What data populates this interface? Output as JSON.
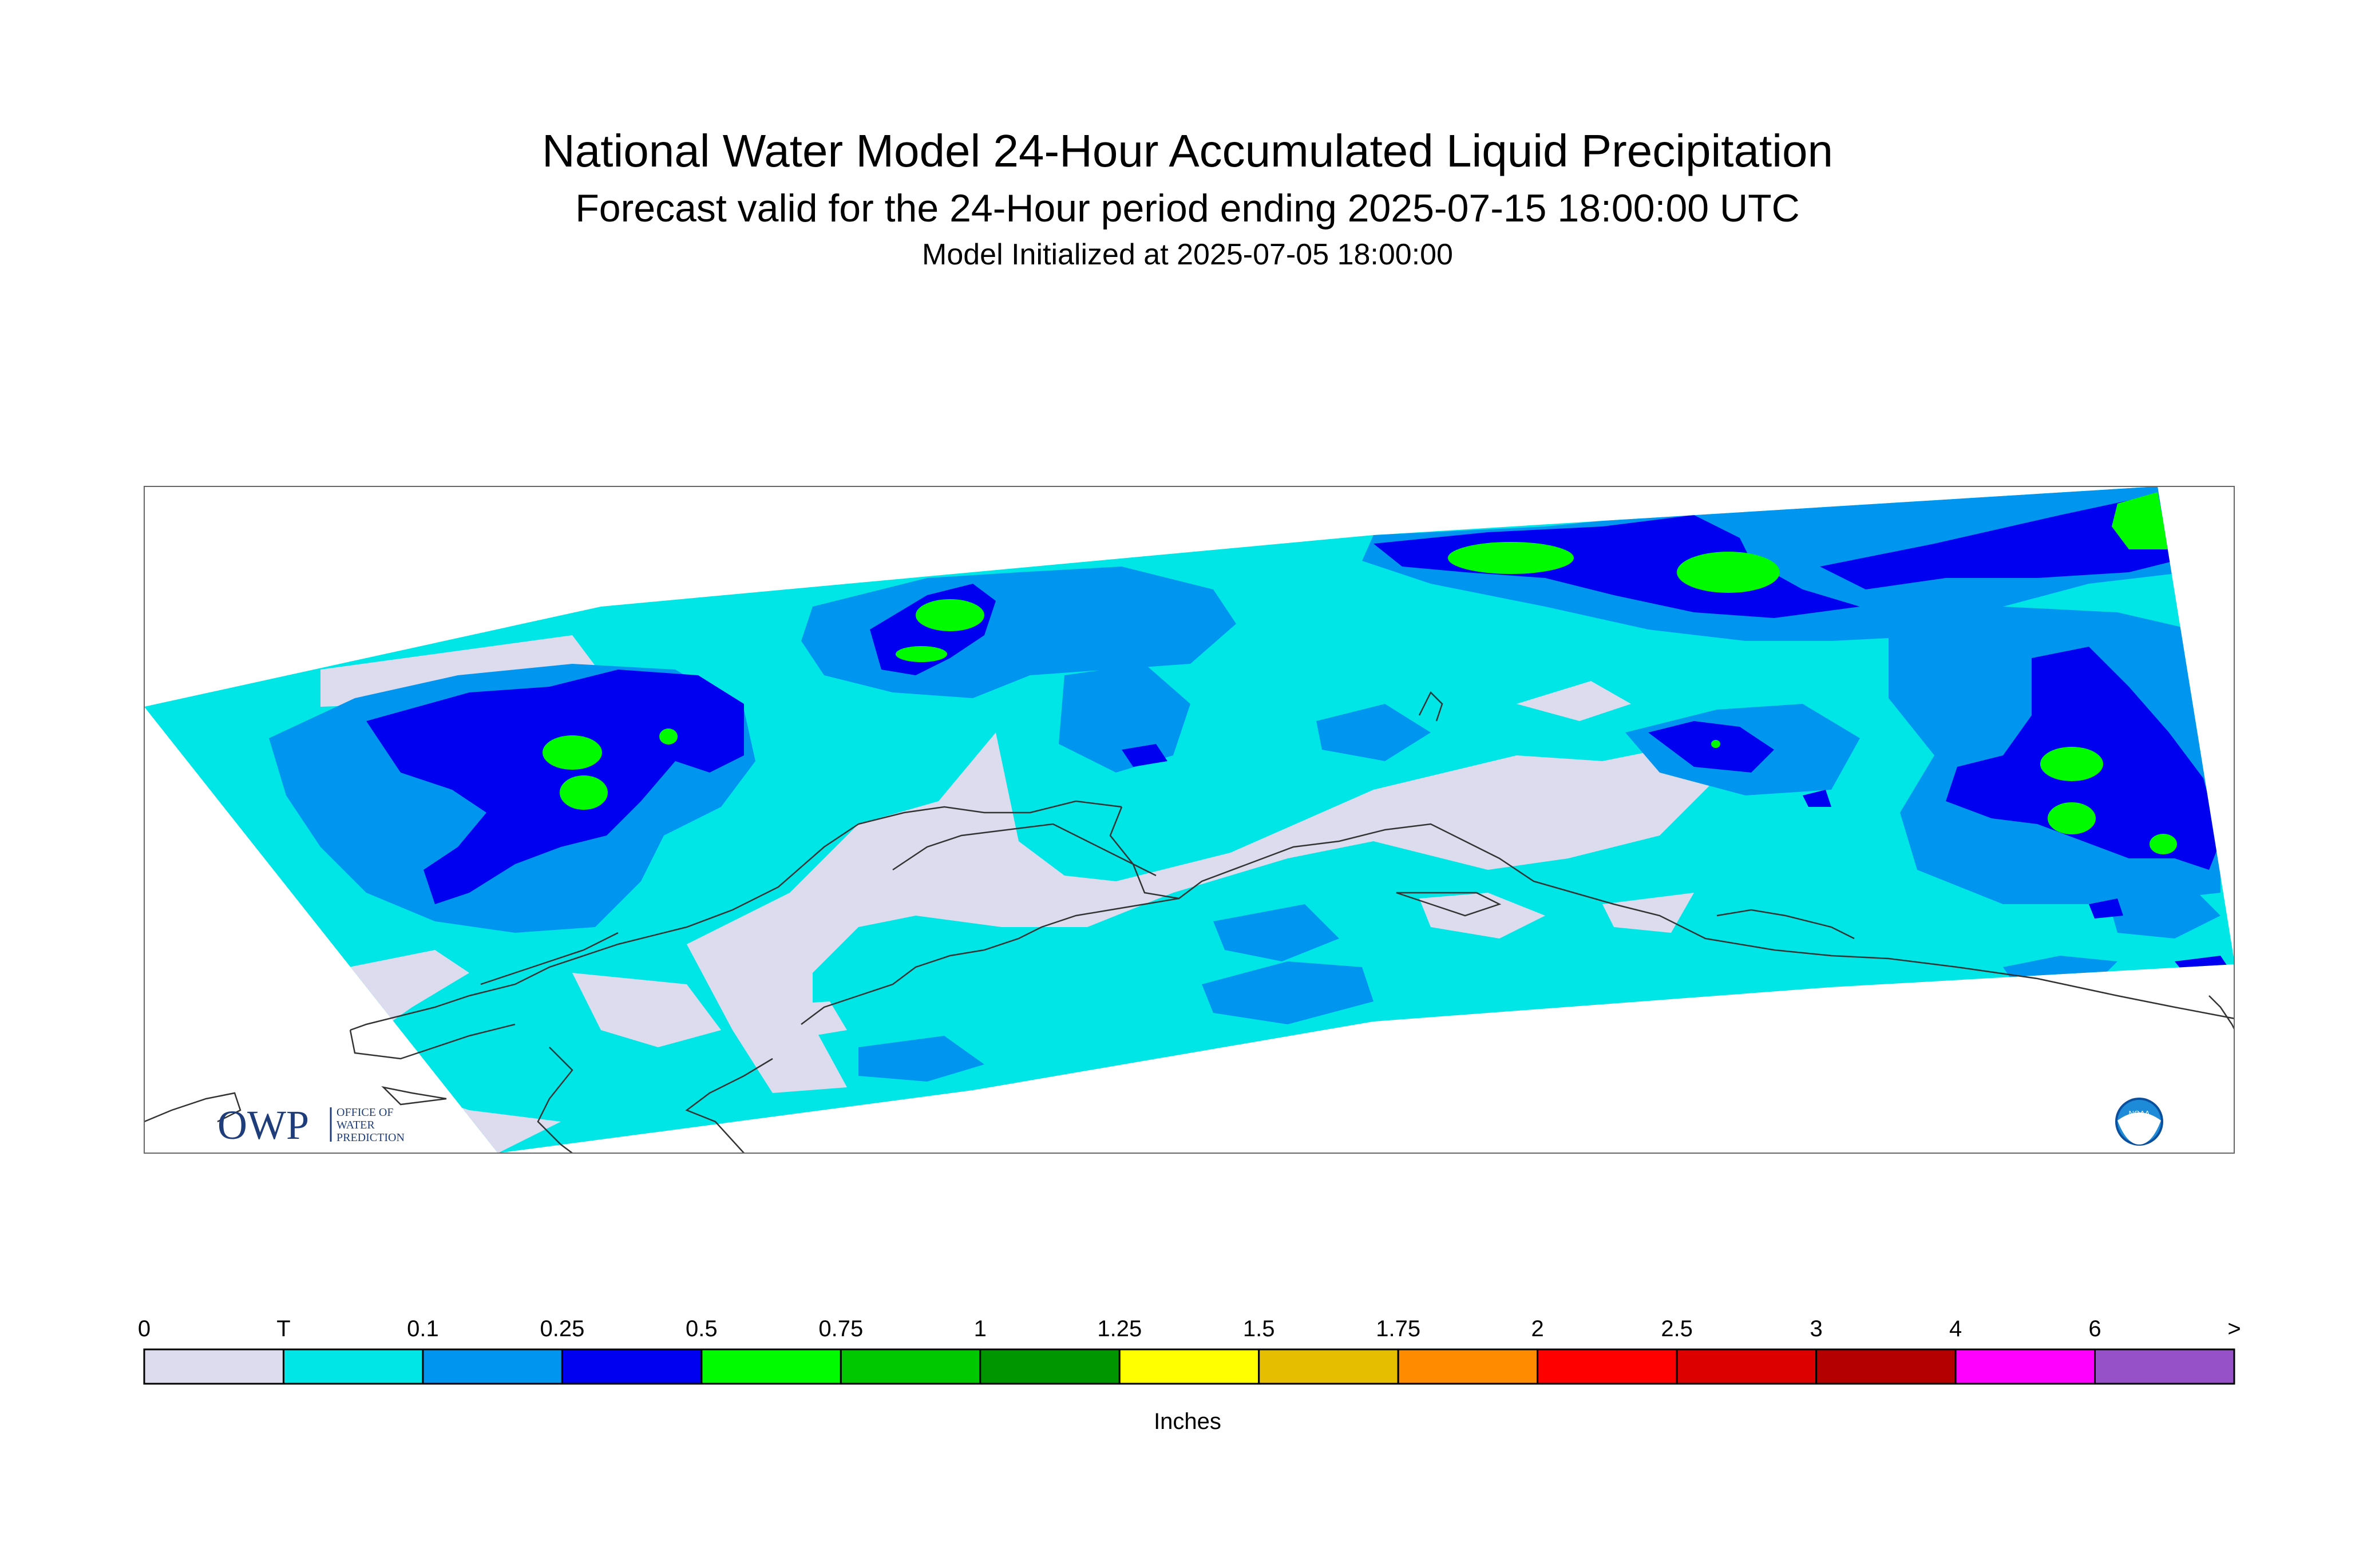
{
  "header": {
    "title": "National Water Model 24-Hour Accumulated Liquid Precipitation",
    "subtitle": "Forecast valid for the 24-Hour period ending 2025-07-15 18:00:00 UTC",
    "init": "Model Initialized at 2025-07-05 18:00:00"
  },
  "logos": {
    "owp": {
      "mark": "OWP",
      "line1": "OFFICE OF",
      "line2": "WATER",
      "line3": "PREDICTION"
    },
    "noaa": {
      "text": "NOAA"
    }
  },
  "legend": {
    "units": "Inches",
    "ticks": [
      "0",
      "T",
      "0.1",
      "0.25",
      "0.5",
      "0.75",
      "1",
      "1.25",
      "1.5",
      "1.75",
      "2",
      "2.5",
      "3",
      "4",
      "6",
      ">"
    ],
    "colors": [
      "#dcdcee",
      "#00e6e6",
      "#0096f0",
      "#0000f0",
      "#00fa00",
      "#00c800",
      "#009600",
      "#ffff00",
      "#e6be00",
      "#ff8c00",
      "#ff0000",
      "#dc0000",
      "#b40000",
      "#ff00ff",
      "#9650c8"
    ]
  }
}
